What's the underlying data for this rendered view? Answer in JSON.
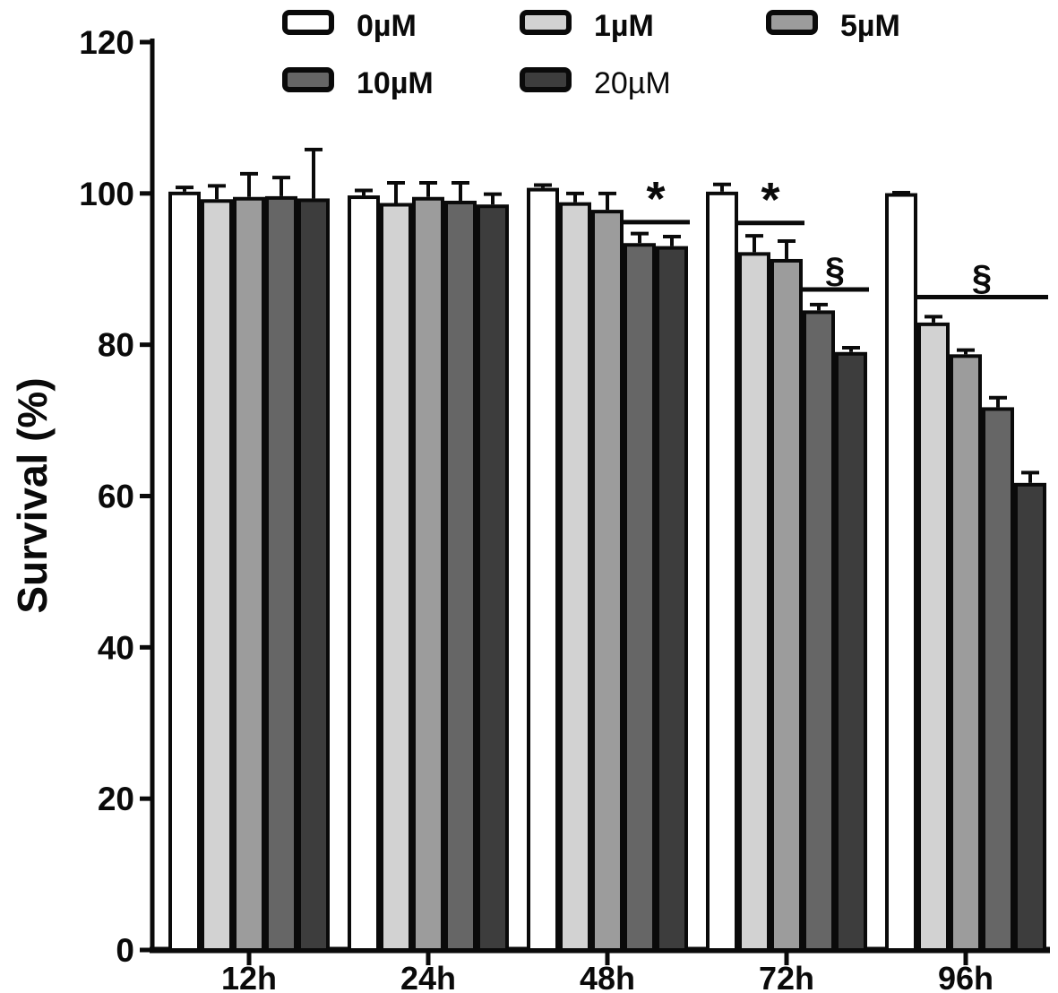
{
  "chart_data": {
    "type": "bar",
    "title": "",
    "xlabel": "",
    "ylabel": "Survival (%)",
    "ylim": [
      0,
      120
    ],
    "yticks": [
      0,
      20,
      40,
      60,
      80,
      100,
      120
    ],
    "categories": [
      "12h",
      "24h",
      "48h",
      "72h",
      "96h"
    ],
    "grid": false,
    "legend_position": "top",
    "error_bars": "upper",
    "bar_border_color": "#0a0a0a",
    "axis_color": "#0a0a0a",
    "series": [
      {
        "name": "0µM",
        "color": "#ffffff",
        "legend_text_bold": true,
        "values": [
          100.0,
          99.5,
          100.5,
          100.0,
          99.8
        ],
        "errors": [
          0.8,
          0.9,
          0.6,
          1.2,
          0.3
        ]
      },
      {
        "name": "1µM",
        "color": "#d2d2d2",
        "legend_text_bold": true,
        "values": [
          99.0,
          98.5,
          98.6,
          92.0,
          82.7
        ],
        "errors": [
          2.0,
          2.9,
          1.4,
          2.4,
          1.0
        ]
      },
      {
        "name": "5µM",
        "color": "#9c9c9c",
        "legend_text_bold": true,
        "values": [
          99.3,
          99.3,
          97.6,
          91.1,
          78.5
        ],
        "errors": [
          3.3,
          2.1,
          2.4,
          2.6,
          0.8
        ]
      },
      {
        "name": "10µM",
        "color": "#666666",
        "legend_text_bold": true,
        "values": [
          99.4,
          98.8,
          93.2,
          84.3,
          71.5
        ],
        "errors": [
          2.7,
          2.6,
          1.5,
          1.0,
          1.5
        ]
      },
      {
        "name": "20µM",
        "color": "#3d3d3d",
        "legend_text_bold": false,
        "values": [
          99.1,
          98.3,
          92.8,
          78.8,
          61.5
        ],
        "errors": [
          6.7,
          1.6,
          1.5,
          0.8,
          1.6
        ]
      }
    ],
    "significance_markers": [
      {
        "category": "48h",
        "symbol": "*",
        "spans_series": [
          "10µM",
          "20µM"
        ],
        "line_y": 96.2
      },
      {
        "category": "72h",
        "symbol": "*",
        "spans_series": [
          "1µM",
          "5µM"
        ],
        "line_y": 96.1
      },
      {
        "category": "72h",
        "symbol": "§",
        "spans_series": [
          "10µM",
          "20µM"
        ],
        "line_y": 87.3
      },
      {
        "category": "96h",
        "symbol": "§",
        "spans_series": [
          "1µM",
          "20µM"
        ],
        "line_y": 86.3
      }
    ]
  }
}
